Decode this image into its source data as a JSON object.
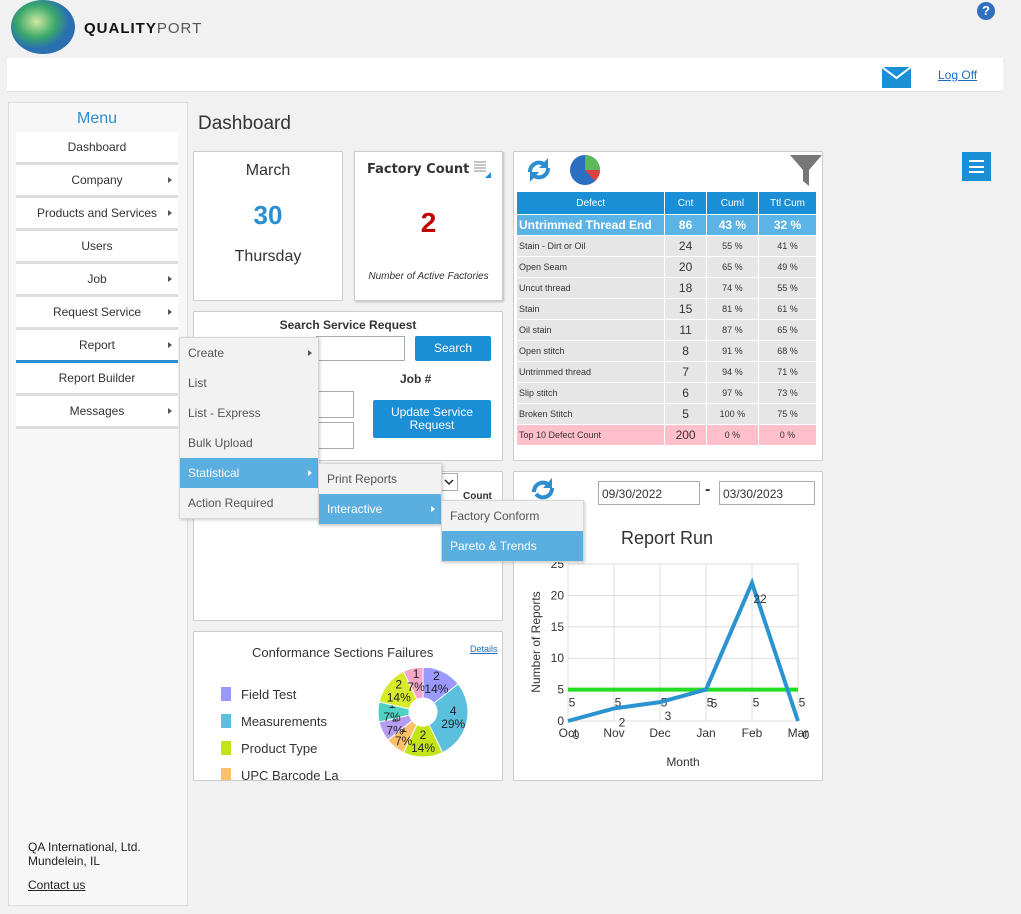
{
  "header": {
    "logo_bold": "QUALITY",
    "logo_light": "PORT",
    "help": "?",
    "logoff": "Log Off"
  },
  "menu": {
    "title": "Menu",
    "items": [
      "Dashboard",
      "Company",
      "Products and Services",
      "Users",
      "Job",
      "Request Service",
      "Report",
      "Report Builder",
      "Messages"
    ]
  },
  "footer": {
    "company": "QA International, Ltd.",
    "city": "Mundelein, IL",
    "contact": "Contact us"
  },
  "report_menu": [
    "Create",
    "List",
    "List - Express",
    "Bulk Upload",
    "Statistical",
    "Action Required"
  ],
  "statistical_menu": [
    "Print Reports",
    "Interactive"
  ],
  "interactive_menu": [
    "Factory Conform",
    "Pareto & Trends"
  ],
  "page_title": "Dashboard",
  "date_card": {
    "month": "March",
    "day": 30,
    "weekday": "Thursday"
  },
  "factory_count": {
    "title": "Factory Count",
    "value": 2,
    "caption": "Number of Active Factories"
  },
  "search": {
    "title": "Search Service Request",
    "search_button": "Search",
    "job_label": "Job #",
    "update_button": "Update Service Request"
  },
  "hidden_card": {
    "count_label": "Count"
  },
  "defect_table": {
    "columns": [
      "Defect",
      "Cnt",
      "Cuml",
      "Ttl Cum"
    ],
    "rows": [
      [
        "Untrimmed Thread End",
        86,
        "43 %",
        "32 %"
      ],
      [
        "Stain - Dirt or Oil",
        24,
        "55 %",
        "41 %"
      ],
      [
        "Open Seam",
        20,
        "65 %",
        "49 %"
      ],
      [
        "Uncut thread",
        18,
        "74 %",
        "55 %"
      ],
      [
        "Stain",
        15,
        "81 %",
        "61 %"
      ],
      [
        "Oil stain",
        11,
        "87 %",
        "65 %"
      ],
      [
        "Open stitch",
        8,
        "91 %",
        "68 %"
      ],
      [
        "Untrimmed thread",
        7,
        "94 %",
        "71 %"
      ],
      [
        "Slip stitch",
        6,
        "97 %",
        "73 %"
      ],
      [
        "Broken Stitch",
        5,
        "100 %",
        "75 %"
      ],
      [
        "Top 10 Defect Count",
        200,
        "0 %",
        "0 %"
      ]
    ]
  },
  "report_run": {
    "date_from": "09/30/2022",
    "dash": "-",
    "date_to": "03/30/2023",
    "chart": {
      "type": "line",
      "title": "Report Run",
      "x_label": "Month",
      "y_label": "Number of Reports",
      "categories": [
        "Oct",
        "Nov",
        "Dec",
        "Jan",
        "Feb",
        "Mar"
      ],
      "series": [
        {
          "color": "#2a93d0",
          "values": [
            0,
            2,
            3,
            5,
            22,
            0
          ]
        },
        {
          "color": "#22dd22",
          "values": [
            5,
            5,
            5,
            5,
            5,
            5
          ]
        }
      ],
      "ylim": [
        0,
        25
      ],
      "yticks": [
        0,
        5,
        10,
        15,
        20,
        25
      ]
    }
  },
  "conformance": {
    "title": "Conformance Sections Failures",
    "details": "Details",
    "legend": [
      "Field Test",
      "Measurements",
      "Product Type",
      "UPC Barcode La"
    ],
    "chart": {
      "type": "pie",
      "values": [
        2,
        4,
        2,
        1,
        1,
        1,
        2,
        1
      ],
      "value_labels": [
        "14%",
        "29%",
        "14%",
        "7%",
        "7%",
        "7%",
        "14%",
        "7%"
      ],
      "colors": [
        "#9999ff",
        "#5bc0de",
        "#c5e31a",
        "#ffc06a",
        "#b59cf0",
        "#4fd1c5",
        "#d7ea2c",
        "#f6a6c8"
      ]
    }
  }
}
